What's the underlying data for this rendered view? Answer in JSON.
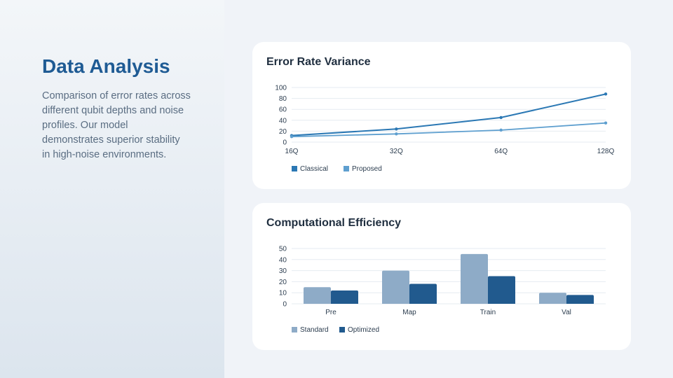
{
  "left_panel": {
    "title": "Data Analysis",
    "description_lines": [
      "Comparison of error rates across",
      "different qubit depths and noise",
      "profiles. Our model",
      "demonstrates superior stability",
      "in high-noise environments."
    ]
  },
  "colors": {
    "title": "#1f5b94",
    "classical": "#2b78b4",
    "proposed": "#5e9fcf",
    "standard": "#8eabc7",
    "optimized": "#215a8e",
    "grid": "#e6ebf1"
  },
  "chart_data": [
    {
      "type": "line",
      "title": "Error Rate Variance",
      "categories": [
        "16Q",
        "32Q",
        "64Q",
        "128Q"
      ],
      "series": [
        {
          "name": "Classical",
          "values": [
            12,
            24,
            45,
            88
          ]
        },
        {
          "name": "Proposed",
          "values": [
            10,
            15,
            22,
            35
          ]
        }
      ],
      "yticks": [
        0,
        20,
        40,
        60,
        80,
        100
      ],
      "ylim": [
        0,
        100
      ],
      "xlabel": "",
      "ylabel": "",
      "grid": true,
      "legend": "bottom-left"
    },
    {
      "type": "bar",
      "title": "Computational Efficiency",
      "categories": [
        "Pre",
        "Map",
        "Train",
        "Val"
      ],
      "series": [
        {
          "name": "Standard",
          "values": [
            15,
            30,
            45,
            10
          ]
        },
        {
          "name": "Optimized",
          "values": [
            12,
            18,
            25,
            8
          ]
        }
      ],
      "yticks": [
        0,
        10,
        20,
        30,
        40,
        50
      ],
      "ylim": [
        0,
        50
      ],
      "xlabel": "",
      "ylabel": "",
      "grid": true,
      "legend": "bottom-left"
    }
  ]
}
